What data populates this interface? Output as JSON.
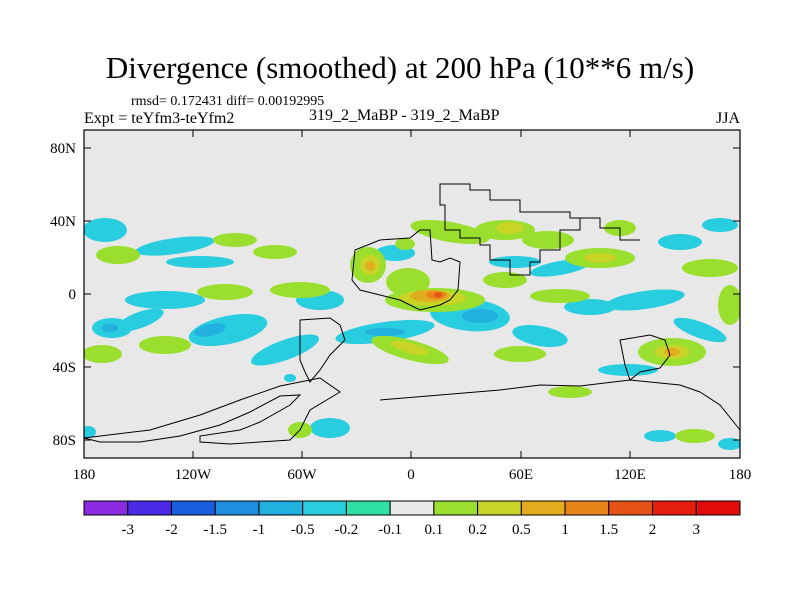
{
  "header": {
    "title": "Divergence (smoothed) at 200 hPa (10**6 m/s)",
    "stats": "rmsd= 0.172431 diff= 0.00192995",
    "experiment": "Expt = teYfm3-teYfm2",
    "case_label": "319_2_MaBP - 319_2_MaBP",
    "season": "JJA"
  },
  "axes": {
    "lat_ticks": [
      "80N",
      "40N",
      "0",
      "40S",
      "80S"
    ],
    "lon_ticks": [
      "180",
      "120W",
      "60W",
      "0",
      "60E",
      "120E",
      "180"
    ]
  },
  "colorbar": {
    "labels": [
      "-3",
      "-2",
      "-1.5",
      "-1",
      "-0.5",
      "-0.2",
      "-0.1",
      "0.1",
      "0.2",
      "0.5",
      "1",
      "1.5",
      "2",
      "3"
    ],
    "colors": [
      "#8a2be2",
      "#4b2ae6",
      "#1a5ee0",
      "#1e8ee0",
      "#22b0e0",
      "#28cde0",
      "#2ee0a6",
      "#e8e8e8",
      "#9ade2e",
      "#c8d426",
      "#e2ac1e",
      "#e8841a",
      "#e65216",
      "#e61e10",
      "#e20c0c"
    ]
  },
  "colors": {
    "background": "#e8e8e8",
    "coast": "#000000"
  }
}
